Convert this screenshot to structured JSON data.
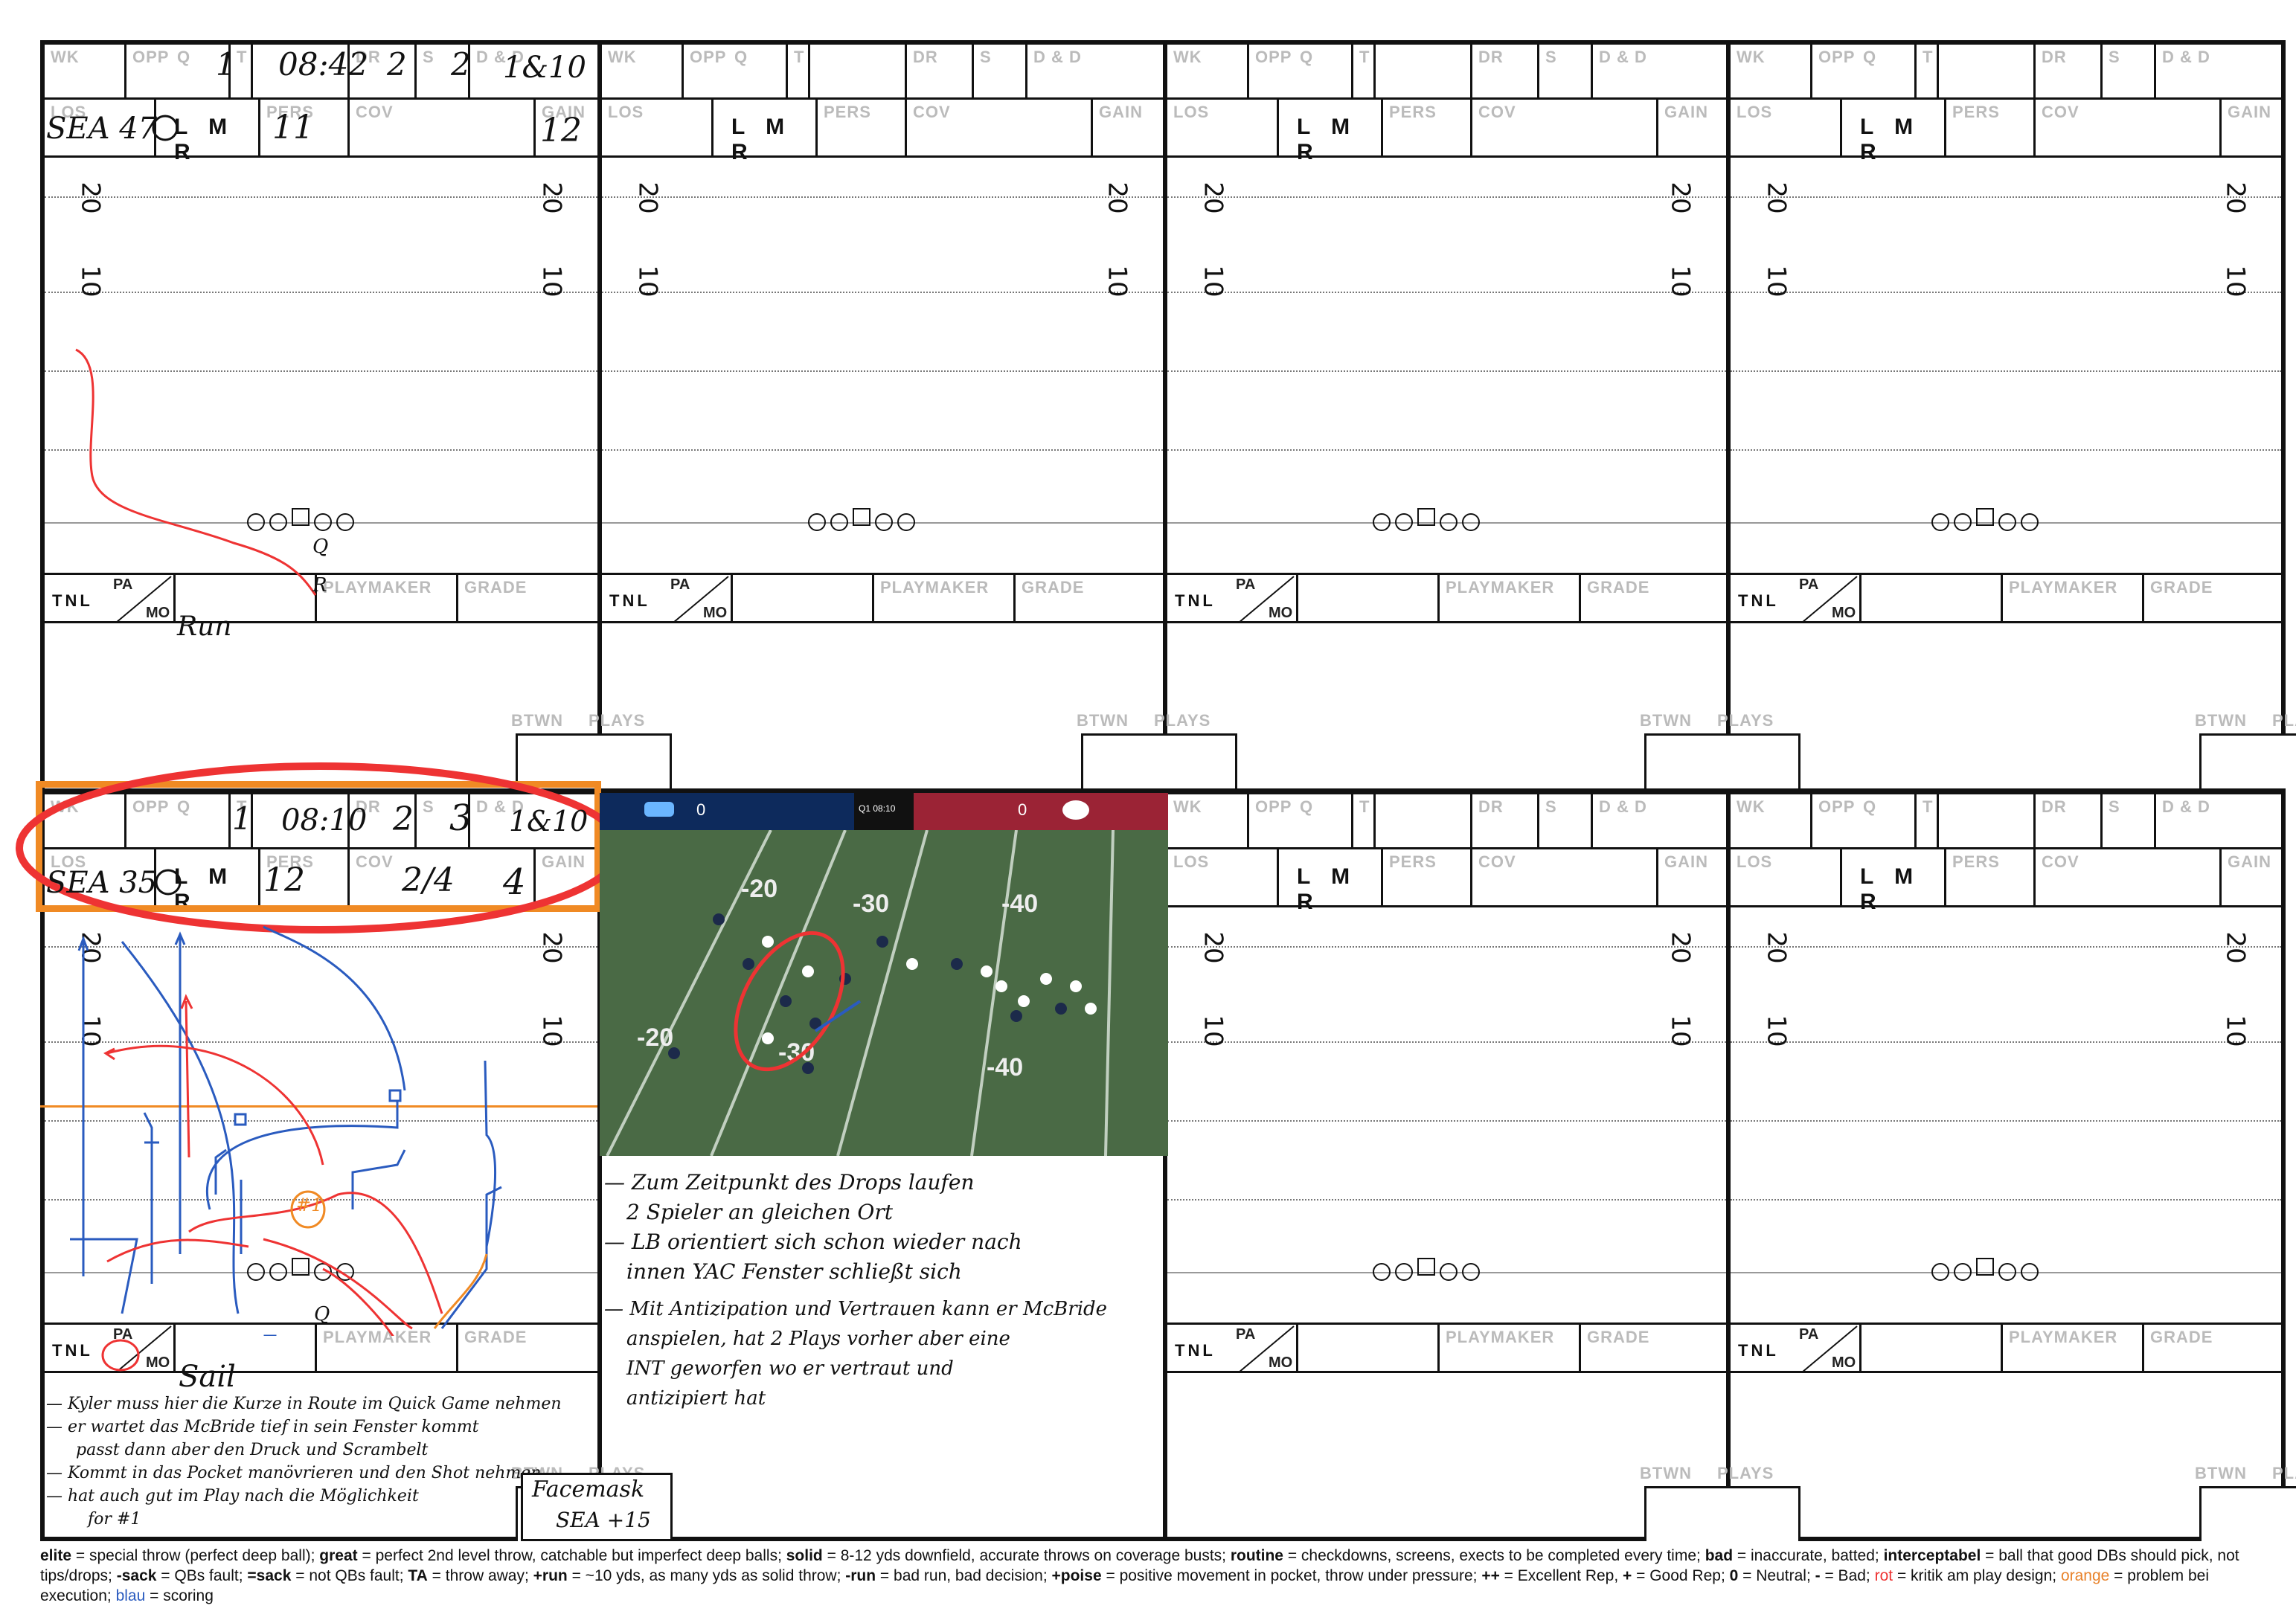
{
  "labels": {
    "wk": "WK",
    "opp": "OPP",
    "q": "Q",
    "t": "T",
    "dr": "DR",
    "s": "S",
    "dd": "D & D",
    "los": "LOS",
    "lmr": "L M R",
    "pers": "PERS",
    "cov": "COV",
    "gain": "GAIN",
    "tnl": "TNL",
    "pa": "PA",
    "mo": "MO",
    "playmaker": "PLAYMAKER",
    "grade": "GRADE",
    "btwn": "BTWN",
    "plays": "PLAYS",
    "yd20": "20",
    "yd10": "10"
  },
  "card1": {
    "q": "1",
    "t": "08:42",
    "dr": "2",
    "s": "2",
    "dd": "1&10",
    "los": "SEA 47",
    "lmr_selected": "L",
    "pers": "11",
    "gain": "12",
    "call": "Run"
  },
  "card5": {
    "q": "1",
    "t": "08:10",
    "dr": "2",
    "s": "3",
    "dd": "1&10",
    "los": "SEA 35",
    "lmr_selected": "L",
    "pers": "12",
    "cov": "2/4",
    "gain": "4",
    "call": "Sail",
    "pa_circled": "PA",
    "route_num": "#1"
  },
  "card5_notes": [
    "— Kyler muss hier die Kurze in Route im Quick Game nehmen",
    "— er wartet das McBride tief in sein Fenster kommt",
    "passt dann aber den Druck und Scrambelt",
    "— Kommt in das Pocket manövrieren und den Shot nehmen",
    "— hat auch gut im Play nach die Möglichkeit",
    "for #1"
  ],
  "facemask": {
    "line1": "Facemask",
    "line2": "SEA +15"
  },
  "video_notes": [
    "— Zum Zeitpunkt des Drops laufen",
    "2 Spieler an gleichen Ort",
    "— LB orientiert sich schon wieder nach",
    "innen YAC Fenster schließt sich",
    "— Mit Antizipation und Vertrauen kann er McBride",
    "anspielen, hat 2 Plays vorher aber eine",
    "INT geworfen wo er vertraut und",
    "antizipiert hat"
  ],
  "video": {
    "home_score": "0",
    "away_score": "0",
    "clock": "Q1 08:10",
    "field_nums": [
      "20",
      "30",
      "40",
      "-20",
      "-30",
      "-40"
    ]
  },
  "legend_html": [
    {
      "b": "elite"
    },
    {
      "t": " = special throw (perfect deep ball); "
    },
    {
      "b": "great"
    },
    {
      "t": " = perfect 2nd level throw, catchable but imperfect deep balls; "
    },
    {
      "b": "solid"
    },
    {
      "t": " = 8-12 yds downfield, accurate throws on coverage busts; "
    },
    {
      "b": "routine"
    },
    {
      "t": " = checkdowns, screens, exects to be completed every time; "
    },
    {
      "b": "bad"
    },
    {
      "t": " = inaccurate, batted; "
    },
    {
      "b": "interceptabel"
    },
    {
      "t": " = ball that good DBs should pick, not tips/drops; "
    },
    {
      "b": "-sack"
    },
    {
      "t": " = QBs fault; "
    },
    {
      "b": "=sack"
    },
    {
      "t": " = not QBs fault; "
    },
    {
      "b": "TA"
    },
    {
      "t": " = throw away; "
    },
    {
      "b": "+run"
    },
    {
      "t": " = ~10 yds, as many yds as solid throw; "
    },
    {
      "b": "-run"
    },
    {
      "t": " = bad run, bad decision; "
    },
    {
      "b": "+poise"
    },
    {
      "t": " = positive movement in pocket, throw under pressure; "
    },
    {
      "b": "++"
    },
    {
      "t": " = Excellent Rep, "
    },
    {
      "b": "+"
    },
    {
      "t": " = Good Rep; "
    },
    {
      "b": "0"
    },
    {
      "t": " = Neutral; "
    },
    {
      "b": "-"
    },
    {
      "t": " = Bad; "
    },
    {
      "r": "rot"
    },
    {
      "t": " = kritik am play design; "
    },
    {
      "o": "orange"
    },
    {
      "t": " = problem bei execution; "
    },
    {
      "u": "blau"
    },
    {
      "t": " = scoring"
    }
  ],
  "colors": {
    "annotation_red": "#e33333",
    "highlight_orange": "#f08a24",
    "route_blue": "#2a5bbf",
    "video_home": "#0d2a5c",
    "video_away": "#9b2335"
  }
}
